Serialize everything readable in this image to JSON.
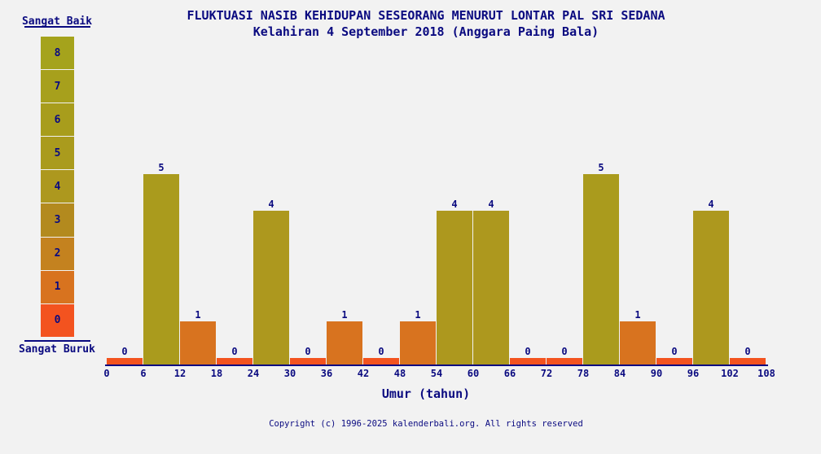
{
  "page": {
    "background": "#f2f2f2",
    "text_color": "#0a0a80"
  },
  "chart_data": {
    "type": "bar",
    "title": "FLUKTUASI NASIB KEHIDUPAN SESEORANG MENURUT LONTAR PAL SRI SEDANA",
    "subtitle": "Kelahiran 4 September 2018 (Anggara Paing Bala)",
    "xlabel": "Umur (tahun)",
    "ylabel": "",
    "ylim": [
      0,
      8
    ],
    "grid": false,
    "legend_position": "left",
    "x_bin_size": 6,
    "x_ticks": [
      0,
      6,
      12,
      18,
      24,
      30,
      36,
      42,
      48,
      54,
      60,
      66,
      72,
      78,
      84,
      90,
      96,
      102,
      108
    ],
    "categories": [
      "0-6",
      "6-12",
      "12-18",
      "18-24",
      "24-30",
      "30-36",
      "36-42",
      "42-48",
      "48-54",
      "54-60",
      "60-66",
      "66-72",
      "72-78",
      "78-84",
      "84-90",
      "90-96",
      "96-102",
      "102-108"
    ],
    "values": [
      0,
      5,
      1,
      0,
      4,
      0,
      1,
      0,
      1,
      4,
      4,
      0,
      0,
      5,
      1,
      0,
      4,
      0
    ],
    "bar_labels_shown": true
  },
  "legend": {
    "top_label": "Sangat Baik",
    "bottom_label": "Sangat Buruk",
    "scale": [
      {
        "value": 8,
        "color": "#a5a31c"
      },
      {
        "value": 7,
        "color": "#a7a01c"
      },
      {
        "value": 6,
        "color": "#a89d1c"
      },
      {
        "value": 5,
        "color": "#aa9b1d"
      },
      {
        "value": 4,
        "color": "#ad981e"
      },
      {
        "value": 3,
        "color": "#b38a1e"
      },
      {
        "value": 2,
        "color": "#c4821f"
      },
      {
        "value": 1,
        "color": "#d8731f"
      },
      {
        "value": 0,
        "color": "#f3531f"
      }
    ]
  },
  "footer": "Copyright (c) 1996-2025 kalenderbali.org. All rights reserved"
}
